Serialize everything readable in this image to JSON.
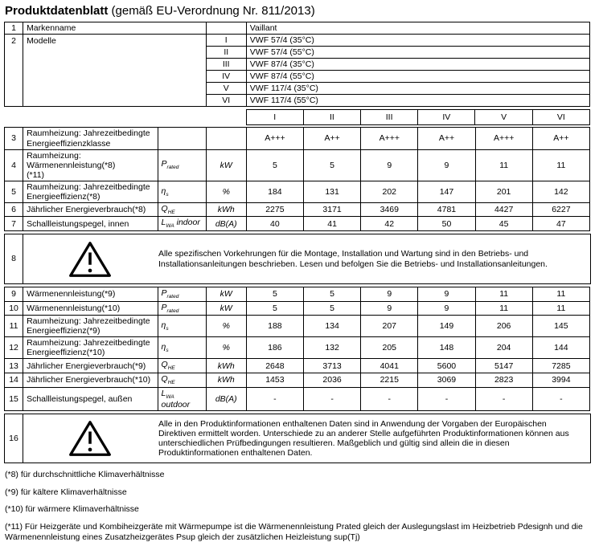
{
  "colors": {
    "background": "#ffffff",
    "text": "#000000",
    "border": "#000000"
  },
  "title": {
    "main": "Produktdatenblatt",
    "suffix": " (gemäß EU-Verordnung Nr. 811/2013)"
  },
  "brand_table": {
    "row1": {
      "num": "1",
      "label": "Markenname",
      "value": "Vaillant"
    },
    "row2": {
      "num": "2",
      "label": "Modelle",
      "models": [
        {
          "numeral": "I",
          "name": "VWF 57/4 (35°C)"
        },
        {
          "numeral": "II",
          "name": "VWF 57/4 (55°C)"
        },
        {
          "numeral": "III",
          "name": "VWF 87/4 (35°C)"
        },
        {
          "numeral": "IV",
          "name": "VWF 87/4 (55°C)"
        },
        {
          "numeral": "V",
          "name": "VWF 117/4 (35°C)"
        },
        {
          "numeral": "VI",
          "name": "VWF 117/4 (55°C)"
        }
      ]
    }
  },
  "column_headers": [
    "I",
    "II",
    "III",
    "IV",
    "V",
    "VI"
  ],
  "data_rows_upper": [
    {
      "num": "3",
      "label": [
        "Raumheizung: Jahrezeitbedingte",
        "Energieeffizienzklasse"
      ],
      "symbol": "",
      "symbol_sub": "",
      "symbol_suffix": "",
      "unit": "",
      "values": [
        "A+++",
        "A++",
        "A+++",
        "A++",
        "A+++",
        "A++"
      ]
    },
    {
      "num": "4",
      "label": [
        "Raumheizung: Wärmenennleistung(*8)",
        "(*11)"
      ],
      "symbol": "P",
      "symbol_sub": "rated",
      "symbol_suffix": "",
      "unit": "kW",
      "values": [
        "5",
        "5",
        "9",
        "9",
        "11",
        "11"
      ]
    },
    {
      "num": "5",
      "label": [
        "Raumheizung: Jahrezeitbedingte",
        "Energieeffizienz(*8)"
      ],
      "symbol": "η",
      "symbol_sub": "s",
      "symbol_suffix": "",
      "unit": "%",
      "values": [
        "184",
        "131",
        "202",
        "147",
        "201",
        "142"
      ]
    },
    {
      "num": "6",
      "label": [
        "Jährlicher Energieverbrauch(*8)"
      ],
      "symbol": "Q",
      "symbol_sub": "HE",
      "symbol_suffix": "",
      "unit": "kWh",
      "values": [
        "2275",
        "3171",
        "3469",
        "4781",
        "4427",
        "6227"
      ]
    },
    {
      "num": "7",
      "label": [
        "Schallleistungspegel, innen"
      ],
      "symbol": "L",
      "symbol_sub": "WA",
      "symbol_suffix": "indoor",
      "unit": "dB(A)",
      "values": [
        "40",
        "41",
        "42",
        "50",
        "45",
        "47"
      ]
    }
  ],
  "warning_row_8": {
    "num": "8",
    "icon": "warning-triangle-icon",
    "text": "Alle spezifischen Vorkehrungen für die Montage, Installation und Wartung sind in den Betriebs- und Installationsanleitungen beschrieben. Lesen und befolgen Sie die Betriebs- und Installationsanleitungen."
  },
  "data_rows_lower": [
    {
      "num": "9",
      "label": [
        "Wärmenennleistung(*9)"
      ],
      "symbol": "P",
      "symbol_sub": "rated",
      "symbol_suffix": "",
      "unit": "kW",
      "values": [
        "5",
        "5",
        "9",
        "9",
        "11",
        "11"
      ]
    },
    {
      "num": "10",
      "label": [
        "Wärmenennleistung(*10)"
      ],
      "symbol": "P",
      "symbol_sub": "rated",
      "symbol_suffix": "",
      "unit": "kW",
      "values": [
        "5",
        "5",
        "9",
        "9",
        "11",
        "11"
      ]
    },
    {
      "num": "11",
      "label": [
        "Raumheizung: Jahrezeitbedingte",
        "Energieeffizienz(*9)"
      ],
      "symbol": "η",
      "symbol_sub": "s",
      "symbol_suffix": "",
      "unit": "%",
      "values": [
        "188",
        "134",
        "207",
        "149",
        "206",
        "145"
      ]
    },
    {
      "num": "12",
      "label": [
        "Raumheizung: Jahrezeitbedingte",
        "Energieeffizienz(*10)"
      ],
      "symbol": "η",
      "symbol_sub": "s",
      "symbol_suffix": "",
      "unit": "%",
      "values": [
        "186",
        "132",
        "205",
        "148",
        "204",
        "144"
      ]
    },
    {
      "num": "13",
      "label": [
        "Jährlicher Energieverbrauch(*9)"
      ],
      "symbol": "Q",
      "symbol_sub": "HE",
      "symbol_suffix": "",
      "unit": "kWh",
      "values": [
        "2648",
        "3713",
        "4041",
        "5600",
        "5147",
        "7285"
      ]
    },
    {
      "num": "14",
      "label": [
        "Jährlicher Energieverbrauch(*10)"
      ],
      "symbol": "Q",
      "symbol_sub": "HE",
      "symbol_suffix": "",
      "unit": "kWh",
      "values": [
        "1453",
        "2036",
        "2215",
        "3069",
        "2823",
        "3994"
      ]
    },
    {
      "num": "15",
      "label": [
        "Schallleistungspegel, außen"
      ],
      "symbol": "L",
      "symbol_sub": "WA",
      "symbol_suffix": "outdoor",
      "unit": "dB(A)",
      "values": [
        "-",
        "-",
        "-",
        "-",
        "-",
        "-"
      ]
    }
  ],
  "warning_row_16": {
    "num": "16",
    "icon": "warning-triangle-icon",
    "text": "Alle in den Produktinformationen enthaltenen Daten sind in Anwendung der Vorgaben der Europäischen Direktiven ermittelt worden. Unterschiede zu an anderer Stelle aufgeführten Produktinformationen können aus unterschiedlichen Prüfbedingungen resultieren. Maßgeblich und gültig sind allein die in diesen Produktinformationen enthaltenen Daten."
  },
  "footnotes": [
    "(*8) für durchschnittliche Klimaverhältnisse",
    "(*9) für kältere Klimaverhältnisse",
    "(*10) für wärmere Klimaverhältnisse",
    "(*11) Für Heizgeräte und Kombiheizgeräte mit Wärmepumpe ist die Wärmenennleistung Prated gleich der Auslegungslast im Heizbetrieb Pdesignh und die Wärmenennleistung eines Zusatzheizgerätes Psup gleich der zusätzlichen Heizleistung sup(Tj)"
  ]
}
